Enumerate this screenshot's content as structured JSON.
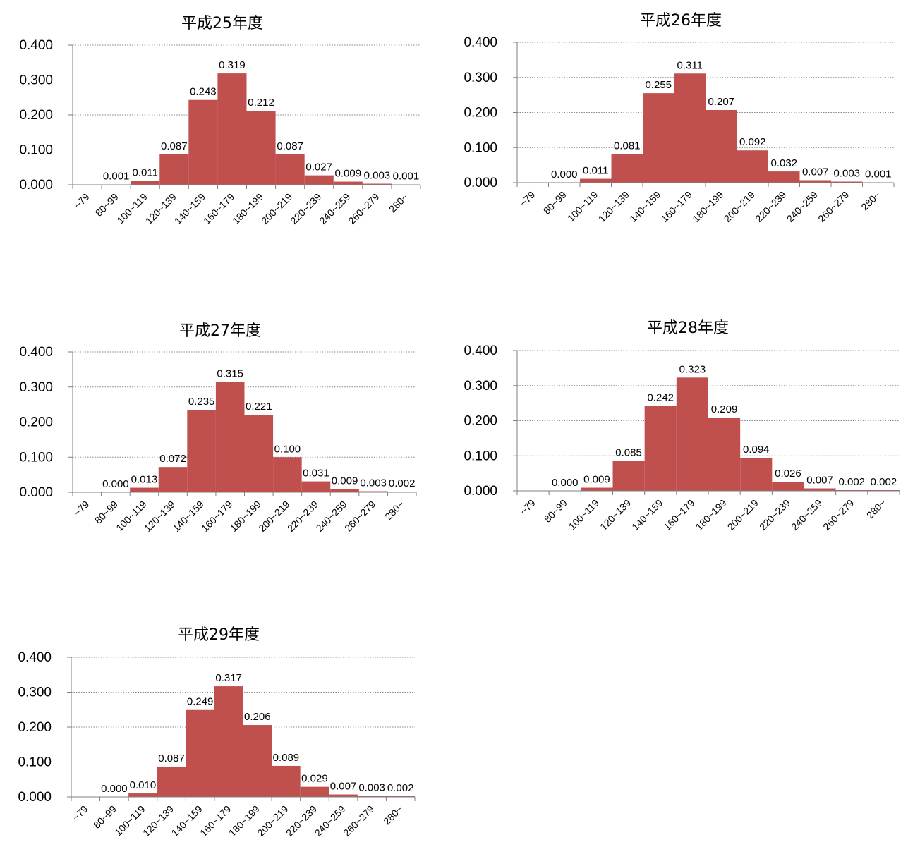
{
  "colors": {
    "bar": "#c0504d"
  },
  "chart_data": [
    {
      "type": "bar",
      "title": "平成25年度",
      "categories": [
        "~79",
        "80~99",
        "100~119",
        "120~139",
        "140~159",
        "160~179",
        "180~199",
        "200~219",
        "220~239",
        "240~259",
        "260~279",
        "280~"
      ],
      "values": [
        0.0,
        0.001,
        0.011,
        0.087,
        0.243,
        0.319,
        0.212,
        0.087,
        0.027,
        0.009,
        0.003,
        0.001
      ],
      "labels": [
        null,
        "0.001",
        "0.011",
        "0.087",
        "0.243",
        "0.319",
        "0.212",
        "0.087",
        "0.027",
        "0.009",
        "0.003",
        "0.001"
      ],
      "yticks": [
        "0.000",
        "0.100",
        "0.200",
        "0.300",
        "0.400"
      ],
      "ylim": [
        0,
        0.4
      ],
      "grid": true,
      "legend": "none"
    },
    {
      "type": "bar",
      "title": "平成26年度",
      "categories": [
        "~79",
        "80~99",
        "100~119",
        "120~139",
        "140~159",
        "160~179",
        "180~199",
        "200~219",
        "220~239",
        "240~259",
        "260~279",
        "280~"
      ],
      "values": [
        0.0,
        0.0,
        0.011,
        0.081,
        0.255,
        0.311,
        0.207,
        0.092,
        0.032,
        0.007,
        0.003,
        0.001
      ],
      "labels": [
        null,
        "0.000",
        "0.011",
        "0.081",
        "0.255",
        "0.311",
        "0.207",
        "0.092",
        "0.032",
        "0.007",
        "0.003",
        "0.001"
      ],
      "yticks": [
        "0.000",
        "0.100",
        "0.200",
        "0.300",
        "0.400"
      ],
      "ylim": [
        0,
        0.4
      ],
      "grid": true,
      "legend": "none"
    },
    {
      "type": "bar",
      "title": "平成27年度",
      "categories": [
        "~79",
        "80~99",
        "100~119",
        "120~139",
        "140~159",
        "160~179",
        "180~199",
        "200~219",
        "220~239",
        "240~259",
        "260~279",
        "280~"
      ],
      "values": [
        0.0,
        0.0,
        0.013,
        0.072,
        0.235,
        0.315,
        0.221,
        0.1,
        0.031,
        0.009,
        0.003,
        0.002
      ],
      "labels": [
        null,
        "0.000",
        "0.013",
        "0.072",
        "0.235",
        "0.315",
        "0.221",
        "0.100",
        "0.031",
        "0.009",
        "0.003",
        "0.002"
      ],
      "yticks": [
        "0.000",
        "0.100",
        "0.200",
        "0.300",
        "0.400"
      ],
      "ylim": [
        0,
        0.4
      ],
      "grid": true,
      "legend": "none"
    },
    {
      "type": "bar",
      "title": "平成28年度",
      "categories": [
        "~79",
        "80~99",
        "100~119",
        "120~139",
        "140~159",
        "160~179",
        "180~199",
        "200~219",
        "220~239",
        "240~259",
        "260~279",
        "280~"
      ],
      "values": [
        0.0,
        0.0,
        0.009,
        0.085,
        0.242,
        0.323,
        0.209,
        0.094,
        0.026,
        0.007,
        0.002,
        0.002
      ],
      "labels": [
        null,
        "0.000",
        "0.009",
        "0.085",
        "0.242",
        "0.323",
        "0.209",
        "0.094",
        "0.026",
        "0.007",
        "0.002",
        "0.002"
      ],
      "yticks": [
        "0.000",
        "0.100",
        "0.200",
        "0.300",
        "0.400"
      ],
      "ylim": [
        0,
        0.4
      ],
      "grid": true,
      "legend": "none"
    },
    {
      "type": "bar",
      "title": "平成29年度",
      "categories": [
        "~79",
        "80~99",
        "100~119",
        "120~139",
        "140~159",
        "160~179",
        "180~199",
        "200~219",
        "220~239",
        "240~259",
        "260~279",
        "280~"
      ],
      "values": [
        0.0,
        0.0,
        0.01,
        0.087,
        0.249,
        0.317,
        0.206,
        0.089,
        0.029,
        0.007,
        0.003,
        0.002
      ],
      "labels": [
        null,
        "0.000",
        "0.010",
        "0.087",
        "0.249",
        "0.317",
        "0.206",
        "0.089",
        "0.029",
        "0.007",
        "0.003",
        "0.002"
      ],
      "yticks": [
        "0.000",
        "0.100",
        "0.200",
        "0.300",
        "0.400"
      ],
      "ylim": [
        0,
        0.4
      ],
      "grid": true,
      "legend": "none"
    }
  ]
}
